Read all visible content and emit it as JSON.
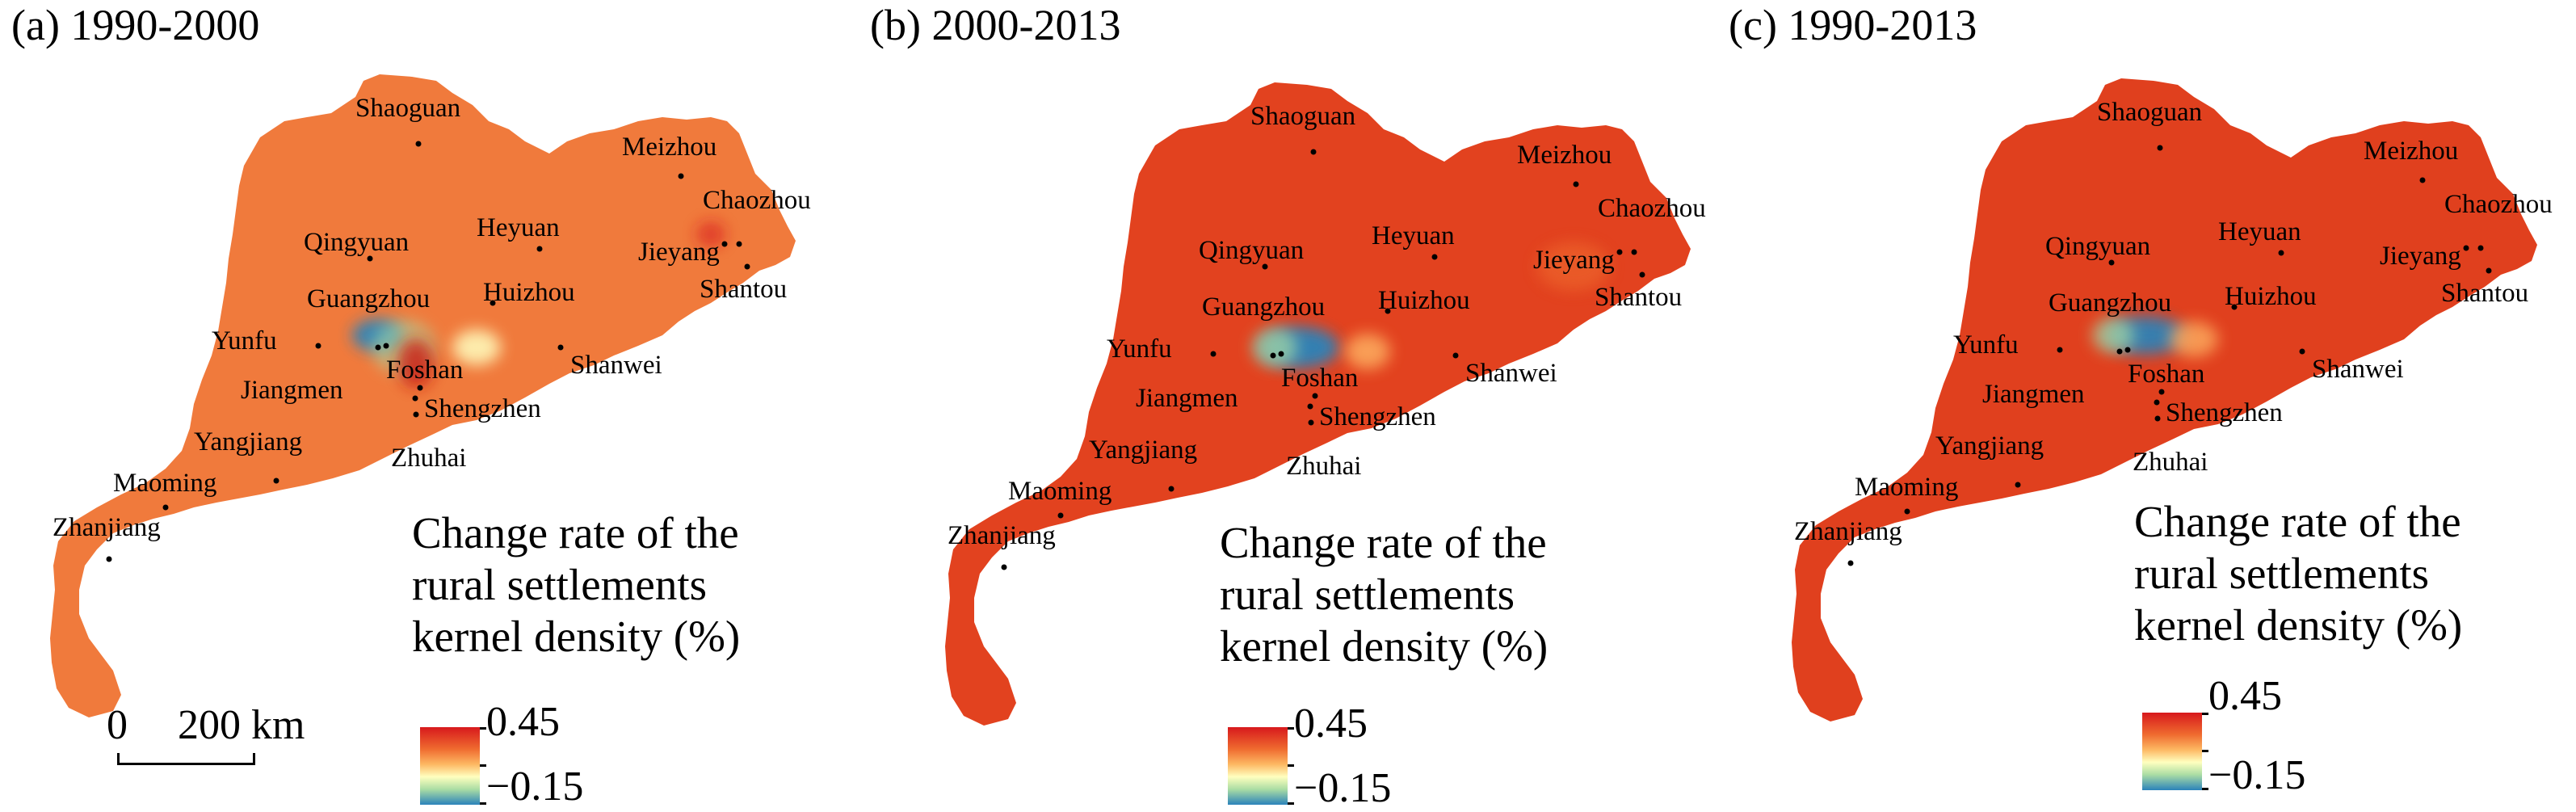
{
  "panels": [
    {
      "title": "(a) 1990-2000",
      "base_color": "#f07a3c",
      "variant": "a"
    },
    {
      "title": "(b) 2000-2013",
      "base_color": "#e2421f",
      "variant": "b"
    },
    {
      "title": "(c) 1990-2013",
      "base_color": "#e0401e",
      "variant": "c"
    }
  ],
  "cities": [
    "Shaoguan",
    "Meizhou",
    "Chaozhou",
    "Heyuan",
    "Qingyuan",
    "Jieyang",
    "Shantou",
    "Guangzhou",
    "Huizhou",
    "Yunfu",
    "Foshan",
    "Shanwei",
    "Jiangmen",
    "Shengzhen",
    "Yangjiang",
    "Zhuhai",
    "Maoming",
    "Zhanjiang"
  ],
  "legend": {
    "title_line1": "Change rate of the",
    "title_line2": "rural settlements",
    "title_line3": "kernel density (%)",
    "max_label": "0.45",
    "min_label": "−0.15",
    "colors": [
      "#d7191c",
      "#fdae61",
      "#ffffbf",
      "#abdda4",
      "#2b83ba"
    ]
  },
  "scalebar": {
    "zero": "0",
    "distance": "200 km"
  }
}
